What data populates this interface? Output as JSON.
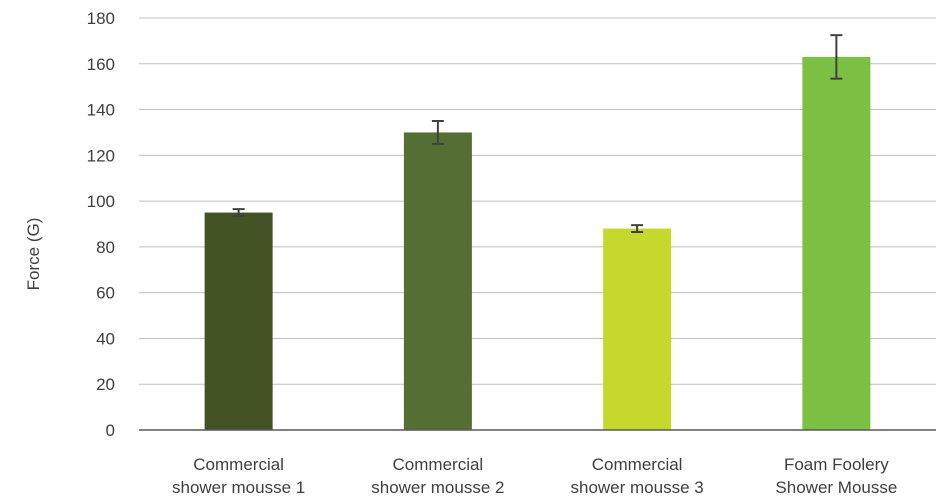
{
  "chart_data": {
    "type": "bar",
    "title": "",
    "xlabel": "",
    "ylabel": "Force (G)",
    "ylim": [
      0,
      180
    ],
    "yticks": [
      0,
      20,
      40,
      60,
      80,
      100,
      120,
      140,
      160,
      180
    ],
    "grid": true,
    "legend": "none",
    "categories": [
      [
        "Commercial",
        "shower mousse 1"
      ],
      [
        "Commercial",
        "shower mousse 2"
      ],
      [
        "Commercial",
        "shower mousse 3"
      ],
      [
        "Foam Foolery",
        "Shower Mousse"
      ]
    ],
    "values": [
      95,
      130,
      88,
      163
    ],
    "error": [
      1.5,
      5,
      1.5,
      9.5
    ],
    "colors": [
      "#435326",
      "#546e34",
      "#c5d92d",
      "#7bc043"
    ]
  }
}
